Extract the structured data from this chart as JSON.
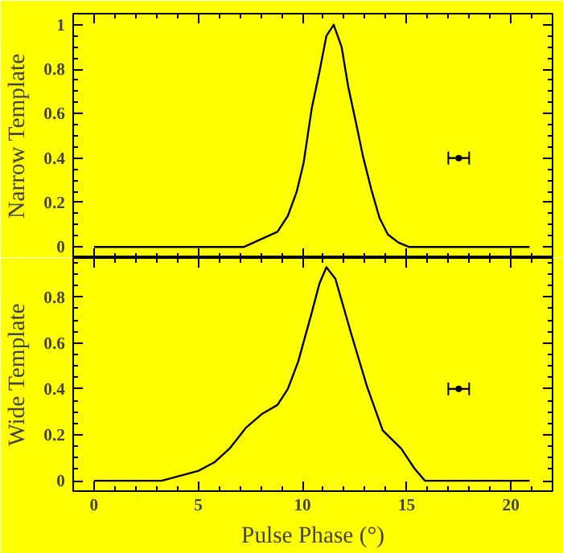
{
  "chart_data": [
    {
      "type": "line",
      "ylabel": "Narrow Template",
      "xlim": [
        -1,
        22
      ],
      "ylim": [
        -0.05,
        1.05
      ],
      "xticks": [
        0,
        5,
        10,
        15,
        20
      ],
      "yticks": [
        0,
        0.2,
        0.4,
        0.6,
        0.8,
        1
      ],
      "tick_labels": "y",
      "grid": false,
      "line_style": "solid",
      "series": [
        {
          "color": "#000000",
          "x": [
            0,
            7.2,
            8.8,
            9.3,
            9.73,
            10.06,
            10.44,
            10.82,
            11.15,
            11.5,
            11.88,
            12.2,
            12.59,
            12.9,
            13.3,
            13.7,
            14.1,
            14.6,
            15.1,
            20.9
          ],
          "values": [
            0,
            0,
            0.068,
            0.14,
            0.25,
            0.38,
            0.62,
            0.79,
            0.95,
            1.0,
            0.9,
            0.72,
            0.55,
            0.41,
            0.26,
            0.13,
            0.056,
            0.02,
            0,
            0
          ]
        },
        {
          "type": "scatter",
          "color": "#000000",
          "x": [
            17.5
          ],
          "values": [
            0.4
          ],
          "xerrors": [
            0.5
          ]
        }
      ]
    },
    {
      "type": "line",
      "xlabel": "Pulse Phase (°)",
      "ylabel": "Wide Template",
      "xlim": [
        -1,
        22
      ],
      "ylim": [
        -0.045,
        0.97
      ],
      "xticks": [
        0,
        5,
        10,
        15,
        20
      ],
      "yticks": [
        0,
        0.2,
        0.4,
        0.6,
        0.8
      ],
      "grid": false,
      "line_style": "solid",
      "series": [
        {
          "color": "#000000",
          "x": [
            0,
            3.24,
            5.0,
            5.77,
            6.5,
            7.28,
            8.04,
            8.8,
            9.3,
            9.8,
            10.44,
            10.82,
            11.15,
            11.58,
            12.34,
            13.1,
            13.85,
            14.74,
            15.37,
            15.88,
            20.9
          ],
          "values": [
            0,
            0,
            0.043,
            0.08,
            0.14,
            0.23,
            0.29,
            0.33,
            0.4,
            0.52,
            0.73,
            0.86,
            0.93,
            0.88,
            0.64,
            0.41,
            0.22,
            0.14,
            0.054,
            0,
            0
          ]
        },
        {
          "type": "scatter",
          "color": "#000000",
          "x": [
            17.5
          ],
          "values": [
            0.4
          ],
          "xerrors": [
            0.5
          ]
        }
      ]
    }
  ]
}
